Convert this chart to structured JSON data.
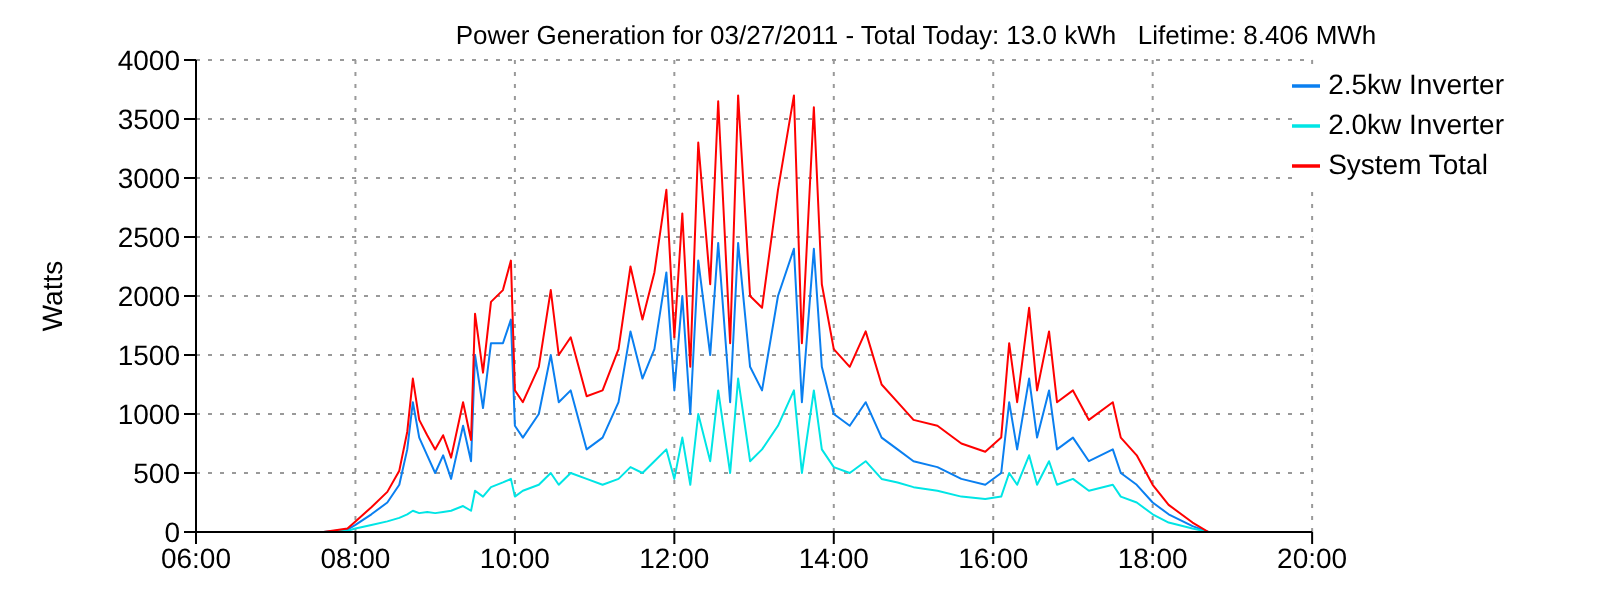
{
  "chart_data": {
    "type": "line",
    "title": "Power Generation for 03/27/2011 - Total Today: 13.0 kWh   Lifetime: 8.406 MWh",
    "ylabel": "Watts",
    "x": [
      7.6,
      7.9,
      8.0,
      8.2,
      8.4,
      8.55,
      8.65,
      8.72,
      8.8,
      8.9,
      9.0,
      9.1,
      9.2,
      9.35,
      9.45,
      9.5,
      9.6,
      9.7,
      9.85,
      9.95,
      10.0,
      10.1,
      10.3,
      10.45,
      10.55,
      10.7,
      10.9,
      11.1,
      11.3,
      11.45,
      11.6,
      11.75,
      11.9,
      12.0,
      12.1,
      12.2,
      12.3,
      12.45,
      12.55,
      12.7,
      12.8,
      12.95,
      13.1,
      13.3,
      13.5,
      13.6,
      13.75,
      13.85,
      14.0,
      14.2,
      14.4,
      14.6,
      14.8,
      15.0,
      15.3,
      15.6,
      15.9,
      16.1,
      16.2,
      16.3,
      16.45,
      16.55,
      16.7,
      16.8,
      17.0,
      17.2,
      17.5,
      17.6,
      17.8,
      18.0,
      18.2,
      18.5,
      18.7,
      19.0
    ],
    "series": [
      {
        "name": "2.5kw Inverter",
        "color": "#0a7ff0",
        "values": [
          0,
          20,
          60,
          150,
          250,
          400,
          700,
          1100,
          800,
          650,
          500,
          650,
          450,
          900,
          600,
          1500,
          1050,
          1600,
          1600,
          1800,
          900,
          800,
          1000,
          1500,
          1100,
          1200,
          700,
          800,
          1100,
          1700,
          1300,
          1550,
          2200,
          1200,
          2000,
          1000,
          2300,
          1500,
          2450,
          1100,
          2450,
          1400,
          1200,
          2000,
          2400,
          1100,
          2400,
          1400,
          1000,
          900,
          1100,
          800,
          700,
          600,
          550,
          450,
          400,
          500,
          1100,
          700,
          1300,
          800,
          1200,
          700,
          800,
          600,
          700,
          500,
          400,
          250,
          150,
          50,
          0,
          0
        ]
      },
      {
        "name": "2.0kw Inverter",
        "color": "#00e5e5",
        "values": [
          0,
          10,
          30,
          60,
          90,
          120,
          150,
          180,
          160,
          170,
          160,
          170,
          180,
          220,
          180,
          350,
          300,
          380,
          420,
          450,
          300,
          350,
          400,
          500,
          400,
          500,
          450,
          400,
          450,
          550,
          500,
          600,
          700,
          450,
          800,
          400,
          1000,
          600,
          1200,
          500,
          1300,
          600,
          700,
          900,
          1200,
          500,
          1200,
          700,
          550,
          500,
          600,
          450,
          420,
          380,
          350,
          300,
          280,
          300,
          500,
          400,
          650,
          400,
          600,
          400,
          450,
          350,
          400,
          300,
          250,
          150,
          80,
          30,
          0,
          0
        ]
      },
      {
        "name": "System Total",
        "color": "#ff0000",
        "values": [
          0,
          30,
          90,
          210,
          340,
          520,
          850,
          1300,
          950,
          820,
          700,
          820,
          630,
          1100,
          780,
          1850,
          1350,
          1950,
          2050,
          2300,
          1200,
          1100,
          1400,
          2050,
          1500,
          1650,
          1150,
          1200,
          1550,
          2250,
          1800,
          2200,
          2900,
          1650,
          2700,
          1400,
          3300,
          2100,
          3650,
          1600,
          3700,
          2000,
          1900,
          2900,
          3700,
          1600,
          3600,
          2100,
          1550,
          1400,
          1700,
          1250,
          1100,
          950,
          900,
          750,
          680,
          800,
          1600,
          1100,
          1900,
          1200,
          1700,
          1100,
          1200,
          950,
          1100,
          800,
          650,
          400,
          230,
          80,
          0,
          0
        ]
      }
    ],
    "xlim": [
      6,
      20
    ],
    "xticks": [
      {
        "value": 6,
        "label": "06:00"
      },
      {
        "value": 8,
        "label": "08:00"
      },
      {
        "value": 10,
        "label": "10:00"
      },
      {
        "value": 12,
        "label": "12:00"
      },
      {
        "value": 14,
        "label": "14:00"
      },
      {
        "value": 16,
        "label": "16:00"
      },
      {
        "value": 18,
        "label": "18:00"
      },
      {
        "value": 20,
        "label": "20:00"
      }
    ],
    "ylim": [
      0,
      4000
    ],
    "yticks": [
      0,
      500,
      1000,
      1500,
      2000,
      2500,
      3000,
      3500,
      4000
    ],
    "grid": true,
    "legend": "top right",
    "marker": "none",
    "line_style": "solid"
  }
}
